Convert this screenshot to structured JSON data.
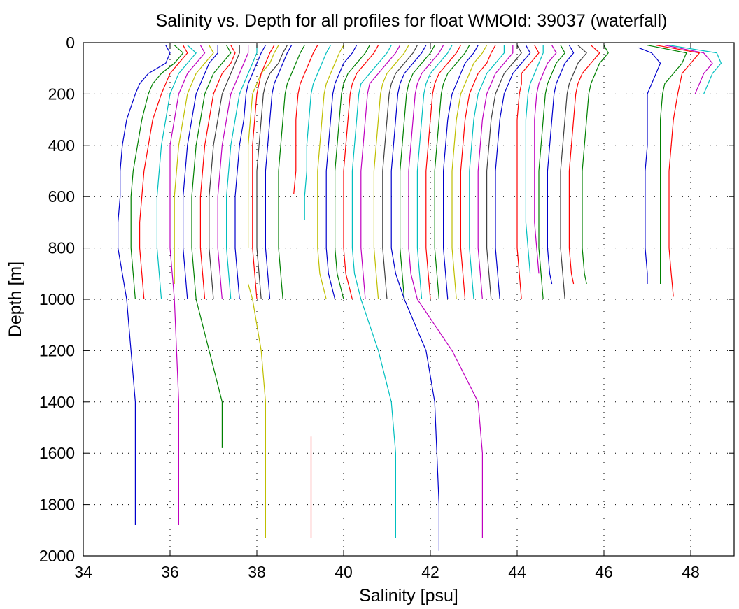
{
  "chart_data": {
    "type": "line",
    "title": "Salinity vs. Depth for all profiles for float WMOId: 39037 (waterfall)",
    "xlabel": "Salinity [psu]",
    "ylabel": "Depth [m]",
    "xlim": [
      34,
      49
    ],
    "ylim": [
      0,
      2000
    ],
    "y_reversed": true,
    "grid": true,
    "xticks": [
      "34",
      "36",
      "38",
      "40",
      "42",
      "44",
      "46",
      "48"
    ],
    "yticks": [
      "0",
      "200",
      "400",
      "600",
      "800",
      "1000",
      "1200",
      "1400",
      "1600",
      "1800",
      "2000"
    ],
    "color_cycle": [
      "#0000cc",
      "#008000",
      "#ff0000",
      "#00bfbf",
      "#bf00bf",
      "#bfbf00",
      "#404040"
    ],
    "depths_m": [
      10,
      40,
      80,
      120,
      160,
      200,
      300,
      400,
      500,
      600,
      700,
      800,
      900,
      1000,
      1200,
      1400,
      1600,
      1800,
      2000
    ],
    "series": [
      {
        "color": "#0000cc",
        "x": [
          35.9,
          36.0,
          35.9,
          35.5,
          35.3,
          35.2,
          35.0,
          34.9,
          34.85,
          34.85,
          34.8,
          34.8,
          34.9,
          35.0,
          35.1,
          35.2,
          35.2,
          35.2,
          35.2
        ],
        "max_depth": 1880
      },
      {
        "color": "#008000",
        "x": [
          36.1,
          36.3,
          36.1,
          35.8,
          35.6,
          35.5,
          35.35,
          35.25,
          35.15,
          35.1,
          35.1,
          35.1,
          35.15,
          35.2
        ]
      },
      {
        "color": "#ff0000",
        "x": [
          36.3,
          36.4,
          36.2,
          36.0,
          35.9,
          35.8,
          35.6,
          35.5,
          35.4,
          35.35,
          35.3,
          35.3,
          35.35,
          35.4
        ]
      },
      {
        "color": "#00bfbf",
        "x": [
          36.4,
          36.6,
          36.4,
          36.2,
          36.1,
          36.0,
          35.9,
          35.8,
          35.75,
          35.7,
          35.7,
          35.7,
          35.75,
          35.8
        ]
      },
      {
        "color": "#bf00bf",
        "x": [
          36.7,
          36.8,
          36.6,
          36.4,
          36.3,
          36.2,
          36.1,
          36.0,
          36.0,
          36.0,
          36.0,
          36.0,
          36.05,
          36.1,
          36.15,
          36.2,
          36.2,
          36.2,
          36.2
        ],
        "max_depth": 1880
      },
      {
        "color": "#bfbf00",
        "x": [
          36.9,
          37.0,
          36.8,
          36.6,
          36.5,
          36.4,
          36.3,
          36.2,
          36.15,
          36.1,
          36.1,
          36.1,
          36.1,
          36.1
        ],
        "max_depth": 940
      },
      {
        "color": "#0000cc",
        "x": [
          37.1,
          37.1,
          36.9,
          36.8,
          36.7,
          36.6,
          36.5,
          36.4,
          36.35,
          36.3,
          36.3,
          36.3,
          36.35,
          36.4
        ]
      },
      {
        "color": "#008000",
        "x": [
          37.3,
          37.4,
          37.2,
          37.0,
          36.9,
          36.8,
          36.7,
          36.6,
          36.55,
          36.5,
          36.5,
          36.5,
          36.55,
          36.6,
          36.9,
          37.2,
          37.2
        ],
        "max_depth": 1580
      },
      {
        "color": "#ff0000",
        "x": [
          37.4,
          37.5,
          37.4,
          37.2,
          37.1,
          37.0,
          36.9,
          36.8,
          36.75,
          36.7,
          36.7,
          36.7,
          36.75,
          36.8
        ]
      },
      {
        "color": "#404040",
        "x": [
          37.6,
          37.6,
          37.5,
          37.4,
          37.3,
          37.2,
          37.1,
          37.0,
          36.95,
          36.9,
          36.9,
          36.9,
          36.95,
          37.0
        ]
      },
      {
        "color": "#bf00bf",
        "x": [
          37.8,
          37.8,
          37.7,
          37.6,
          37.5,
          37.4,
          37.3,
          37.2,
          37.15,
          37.1,
          37.1,
          37.1,
          37.15,
          37.2
        ]
      },
      {
        "color": "#00bfbf",
        "x": [
          38.0,
          38.0,
          37.9,
          37.8,
          37.7,
          37.6,
          37.5,
          37.4,
          37.35,
          37.3,
          37.3,
          37.3,
          37.35,
          37.4
        ]
      },
      {
        "color": "#0000cc",
        "x": [
          38.2,
          38.1,
          38.0,
          37.9,
          37.8,
          37.75,
          37.7,
          37.6,
          37.55,
          37.5,
          37.5,
          37.5,
          37.55,
          37.6
        ]
      },
      {
        "color": "#bfbf00",
        "x": [
          38.5,
          38.4,
          38.3,
          38.1,
          38.0,
          37.9,
          37.85,
          37.8,
          37.8,
          37.8,
          37.8,
          37.8
        ],
        "max_depth": 840
      },
      {
        "color": "#bfbf00",
        "x": [
          37.8,
          37.9,
          38.1,
          38.2,
          38.2,
          38.2,
          38.2
        ],
        "depths": [
          940,
          1000,
          1200,
          1400,
          1600,
          1800,
          1930
        ]
      },
      {
        "color": "#ff0000",
        "x": [
          38.4,
          38.3,
          38.2,
          38.1,
          38.05,
          38.0,
          37.95,
          37.9,
          37.9,
          37.9,
          37.9,
          37.9,
          37.95,
          38.0
        ]
      },
      {
        "color": "#404040",
        "x": [
          38.7,
          38.6,
          38.5,
          38.3,
          38.2,
          38.15,
          38.1,
          38.05,
          38.0,
          38.0,
          38.0,
          38.0,
          38.05,
          38.1
        ]
      },
      {
        "color": "#0000cc",
        "x": [
          38.8,
          38.7,
          38.6,
          38.5,
          38.4,
          38.35,
          38.3,
          38.25,
          38.2,
          38.2,
          38.2,
          38.2,
          38.25,
          38.3
        ]
      },
      {
        "color": "#008000",
        "x": [
          39.1,
          39.0,
          38.9,
          38.8,
          38.7,
          38.65,
          38.6,
          38.55,
          38.5,
          38.5,
          38.5,
          38.5,
          38.55,
          38.6
        ]
      },
      {
        "color": "#ff0000",
        "x": [
          39.4,
          39.3,
          39.2,
          39.1,
          39.0,
          38.95,
          38.9,
          38.9,
          38.9,
          38.85
        ],
        "max_depth": 590
      },
      {
        "color": "#ff0000",
        "x": [
          39.25,
          39.25,
          39.25,
          39.25
        ],
        "depths": [
          1535,
          1600,
          1800,
          1930
        ]
      },
      {
        "color": "#00bfbf",
        "x": [
          39.7,
          39.6,
          39.5,
          39.4,
          39.3,
          39.25,
          39.2,
          39.15,
          39.15,
          39.1,
          39.1
        ],
        "max_depth": 690
      },
      {
        "color": "#bfbf00",
        "x": [
          40.0,
          39.9,
          39.8,
          39.7,
          39.6,
          39.55,
          39.5,
          39.45,
          39.4,
          39.4,
          39.4,
          39.4,
          39.45,
          39.6
        ]
      },
      {
        "color": "#0000cc",
        "x": [
          40.3,
          40.2,
          40.0,
          39.9,
          39.8,
          39.75,
          39.7,
          39.65,
          39.6,
          39.6,
          39.6,
          39.6,
          39.65,
          39.8
        ]
      },
      {
        "color": "#008000",
        "x": [
          40.6,
          40.5,
          40.3,
          40.1,
          40.0,
          39.95,
          39.9,
          39.85,
          39.8,
          39.8,
          39.8,
          39.8,
          39.85,
          40.0
        ]
      },
      {
        "color": "#ff0000",
        "x": [
          40.8,
          40.7,
          40.5,
          40.3,
          40.2,
          40.15,
          40.1,
          40.05,
          40.0,
          40.0,
          40.0,
          40.0,
          40.05,
          40.2
        ]
      },
      {
        "color": "#00bfbf",
        "x": [
          41.1,
          41.0,
          40.8,
          40.6,
          40.4,
          40.35,
          40.3,
          40.25,
          40.2,
          40.2,
          40.2,
          40.2,
          40.25,
          40.4,
          40.8,
          41.1,
          41.2,
          41.2,
          41.2
        ],
        "max_depth": 1930
      },
      {
        "color": "#bf00bf",
        "x": [
          41.3,
          41.2,
          41.0,
          40.8,
          40.6,
          40.55,
          40.5,
          40.45,
          40.4,
          40.4,
          40.4,
          40.4,
          40.45,
          40.5
        ]
      },
      {
        "color": "#bfbf00",
        "x": [
          41.5,
          41.4,
          41.2,
          41.0,
          40.9,
          40.85,
          40.8,
          40.75,
          40.7,
          40.7,
          40.7,
          40.7,
          40.75,
          40.8
        ]
      },
      {
        "color": "#404040",
        "x": [
          41.7,
          41.6,
          41.4,
          41.2,
          41.1,
          41.05,
          41.0,
          40.95,
          40.9,
          40.9,
          40.9,
          40.9,
          40.95,
          41.0
        ]
      },
      {
        "color": "#0000cc",
        "x": [
          41.9,
          41.8,
          41.6,
          41.4,
          41.3,
          41.25,
          41.2,
          41.15,
          41.1,
          41.1,
          41.1,
          41.1,
          41.2,
          41.4,
          41.9,
          42.1,
          42.15,
          42.2,
          42.2
        ],
        "max_depth": 1980
      },
      {
        "color": "#008000",
        "x": [
          42.1,
          42.0,
          41.8,
          41.6,
          41.5,
          41.45,
          41.4,
          41.35,
          41.3,
          41.3,
          41.3,
          41.3,
          41.35,
          41.4
        ]
      },
      {
        "color": "#bf00bf",
        "x": [
          42.3,
          42.2,
          42.0,
          41.8,
          41.7,
          41.65,
          41.6,
          41.55,
          41.5,
          41.5,
          41.5,
          41.5,
          41.55,
          41.7,
          42.5,
          43.1,
          43.2,
          43.2,
          43.2
        ],
        "max_depth": 1930
      },
      {
        "color": "#00bfbf",
        "x": [
          42.5,
          42.4,
          42.2,
          42.0,
          41.9,
          41.85,
          41.8,
          41.75,
          41.7,
          41.7,
          41.7,
          41.7,
          41.75,
          41.8
        ]
      },
      {
        "color": "#ff0000",
        "x": [
          42.7,
          42.6,
          42.4,
          42.2,
          42.1,
          42.05,
          42.0,
          41.95,
          41.9,
          41.9,
          41.9,
          41.9,
          41.95,
          42.0
        ]
      },
      {
        "color": "#008000",
        "x": [
          42.9,
          42.8,
          42.6,
          42.4,
          42.3,
          42.25,
          42.2,
          42.15,
          42.1,
          42.1,
          42.1,
          42.1,
          42.15,
          42.2
        ]
      },
      {
        "color": "#0000cc",
        "x": [
          43.1,
          43.0,
          42.8,
          42.7,
          42.6,
          42.5,
          42.4,
          42.35,
          42.3,
          42.3,
          42.3,
          42.3,
          42.35,
          42.4
        ]
      },
      {
        "color": "#bfbf00",
        "x": [
          43.3,
          43.2,
          43.0,
          42.9,
          42.8,
          42.7,
          42.6,
          42.55,
          42.5,
          42.5,
          42.5,
          42.5,
          42.55,
          42.6
        ]
      },
      {
        "color": "#ff0000",
        "x": [
          43.5,
          43.4,
          43.3,
          43.1,
          43.0,
          42.9,
          42.8,
          42.75,
          42.7,
          42.7,
          42.7,
          42.7,
          42.75,
          42.8
        ]
      },
      {
        "color": "#00bfbf",
        "x": [
          43.7,
          43.7,
          43.5,
          43.3,
          43.2,
          43.1,
          43.0,
          42.95,
          42.9,
          42.9,
          42.9,
          42.9,
          42.95,
          43.0
        ]
      },
      {
        "color": "#bf00bf",
        "x": [
          43.9,
          43.9,
          43.7,
          43.5,
          43.4,
          43.3,
          43.2,
          43.15,
          43.1,
          43.1,
          43.1,
          43.1,
          43.15,
          43.2
        ]
      },
      {
        "color": "#404040",
        "x": [
          44.0,
          44.1,
          43.9,
          43.7,
          43.6,
          43.5,
          43.4,
          43.35,
          43.3,
          43.3,
          43.3,
          43.3,
          43.35,
          43.4
        ]
      },
      {
        "color": "#0000cc",
        "x": [
          44.2,
          44.3,
          44.1,
          43.9,
          43.8,
          43.7,
          43.6,
          43.55,
          43.5,
          43.5,
          43.5,
          43.5,
          43.55,
          43.6
        ]
      },
      {
        "color": "#ff0000",
        "x": [
          44.4,
          44.5,
          44.3,
          44.1,
          44.1,
          44.05,
          44.0,
          44.0,
          44.0,
          44.0,
          44.0,
          44.0,
          44.05,
          44.1
        ]
      },
      {
        "color": "#00bfbf",
        "x": [
          44.6,
          44.6,
          44.5,
          44.4,
          44.3,
          44.25,
          44.2,
          44.2,
          44.2,
          44.2,
          44.2,
          44.25,
          44.3
        ],
        "max_depth": 940
      },
      {
        "color": "#bf00bf",
        "x": [
          44.8,
          44.9,
          44.7,
          44.6,
          44.5,
          44.45,
          44.4,
          44.4,
          44.4,
          44.4,
          44.4,
          44.45,
          44.5
        ],
        "max_depth": 940
      },
      {
        "color": "#008000",
        "x": [
          45.0,
          45.1,
          44.9,
          44.8,
          44.7,
          44.65,
          44.6,
          44.55,
          44.5,
          44.5,
          44.5,
          44.5,
          44.55,
          44.6
        ]
      },
      {
        "color": "#0000cc",
        "x": [
          45.2,
          45.3,
          45.1,
          45.0,
          44.9,
          44.85,
          44.8,
          44.75,
          44.7,
          44.7,
          44.7,
          44.7,
          44.75,
          44.8
        ],
        "max_depth": 940
      },
      {
        "color": "#404040",
        "x": [
          45.4,
          45.6,
          45.4,
          45.3,
          45.2,
          45.15,
          45.1,
          45.05,
          45.0,
          45.0,
          45.0,
          45.0,
          45.05,
          45.1
        ]
      },
      {
        "color": "#ff0000",
        "x": [
          45.7,
          45.9,
          45.7,
          45.5,
          45.4,
          45.35,
          45.3,
          45.25,
          45.2,
          45.2,
          45.2,
          45.2,
          45.25,
          45.3
        ],
        "max_depth": 940
      },
      {
        "color": "#008000",
        "x": [
          46.0,
          46.1,
          45.9,
          45.8,
          45.7,
          45.65,
          45.6,
          45.55,
          45.5,
          45.5,
          45.5,
          45.5,
          45.55,
          45.6
        ],
        "max_depth": 940
      },
      {
        "color": "#0000cc",
        "x": [
          46.8,
          47.1,
          47.3,
          47.2,
          47.1,
          47.0,
          47.0,
          47.0,
          46.95,
          46.95,
          46.95,
          46.95,
          47.0,
          47.0
        ],
        "min_depth": 20,
        "max_depth": 940
      },
      {
        "color": "#008000",
        "x": [
          47.0,
          47.9,
          47.8,
          47.6,
          47.4,
          47.35,
          47.3,
          47.3,
          47.3,
          47.3,
          47.3,
          47.3,
          47.3,
          47.3
        ],
        "max_depth": 940
      },
      {
        "color": "#ff0000",
        "x": [
          47.2,
          48.2,
          48.0,
          47.8,
          47.75,
          47.7,
          47.6,
          47.55,
          47.5,
          47.5,
          47.5,
          47.5,
          47.55,
          47.6
        ],
        "max_depth": 990
      },
      {
        "color": "#bf00bf",
        "x": [
          47.4,
          48.3,
          48.5,
          48.3,
          48.2,
          48.1
        ]
      },
      {
        "color": "#00bfbf",
        "x": [
          47.5,
          48.6,
          48.7,
          48.5,
          48.4,
          48.3
        ]
      }
    ]
  }
}
